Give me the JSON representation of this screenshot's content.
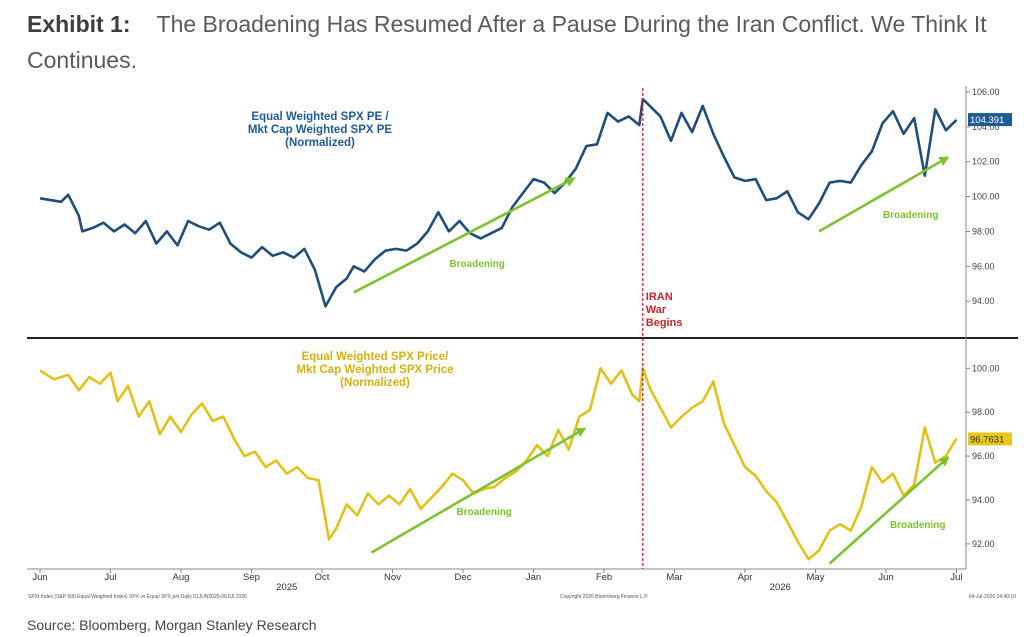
{
  "exhibit": {
    "label": "Exhibit 1:",
    "title": "The Broadening Has Resumed After a Pause During the Iran Conflict. We Think It Continues."
  },
  "source": "Source: Bloomberg, Morgan Stanley Research",
  "footnotes": {
    "left": "SPXI Index (S&P 500 Equal Weighted Index) SPX vs Equal SPX p/e Daily 01JUN2025-06JUL2026",
    "center": "Copyright 2026 Bloomberg Finance L.P.",
    "right": "04-Jul-2026 14:40:10"
  },
  "colors": {
    "pe_line": "#1f4e79",
    "price_line": "#e0c21a",
    "pe_label": "#1f5c96",
    "price_label": "#d4b20f",
    "arrow": "#7ec22f",
    "event_line": "#c0282d",
    "pe_badge": "#1f5c96",
    "price_badge": "#e8c81c",
    "divider": "#222222"
  },
  "event": {
    "label_lines": [
      "IRAN",
      "War",
      "Begins"
    ],
    "x": 8.55
  },
  "x_axis": {
    "months": [
      "Jun",
      "Jul",
      "Aug",
      "Sep",
      "Oct",
      "Nov",
      "Dec",
      "Jan",
      "Feb",
      "Mar",
      "Apr",
      "May",
      "Jun",
      "Jul"
    ],
    "years": [
      {
        "label": "2025",
        "x": 3.5
      },
      {
        "label": "2026",
        "x": 10.5
      }
    ]
  },
  "chart_data": [
    {
      "type": "line",
      "name": "pe_panel",
      "title_lines": [
        "Equal Weighted SPX PE /",
        "Mkt Cap Weighted SPX PE",
        "(Normalized)"
      ],
      "x_unit": "months since Jun 2025",
      "ylim": [
        92.0,
        106.0
      ],
      "yticks": [
        "106.00",
        "104.00",
        "102.00",
        "100.00",
        "98.00",
        "96.00",
        "94.00"
      ],
      "last_value_label": "104.391",
      "last_value": 104.39,
      "x": [
        0.0,
        0.3,
        0.4,
        0.55,
        0.6,
        0.75,
        0.9,
        1.05,
        1.2,
        1.35,
        1.5,
        1.65,
        1.8,
        1.95,
        2.1,
        2.25,
        2.4,
        2.55,
        2.7,
        2.85,
        3.0,
        3.15,
        3.3,
        3.45,
        3.6,
        3.75,
        3.9,
        4.05,
        4.2,
        4.35,
        4.45,
        4.6,
        4.75,
        4.9,
        5.05,
        5.2,
        5.35,
        5.5,
        5.65,
        5.8,
        5.95,
        6.1,
        6.25,
        6.4,
        6.55,
        6.7,
        6.85,
        7.0,
        7.15,
        7.3,
        7.45,
        7.6,
        7.75,
        7.9,
        8.05,
        8.2,
        8.35,
        8.5,
        8.55,
        8.65,
        8.8,
        8.95,
        9.1,
        9.25,
        9.4,
        9.55,
        9.7,
        9.85,
        10.0,
        10.15,
        10.3,
        10.45,
        10.6,
        10.75,
        10.9,
        11.05,
        11.2,
        11.35,
        11.5,
        11.65,
        11.8,
        11.95,
        12.1,
        12.25,
        12.4,
        12.55,
        12.7,
        12.85,
        13.0
      ],
      "values": [
        99.9,
        99.7,
        100.1,
        98.9,
        98.0,
        98.2,
        98.5,
        98.0,
        98.4,
        97.9,
        98.6,
        97.3,
        98.0,
        97.2,
        98.6,
        98.3,
        98.1,
        98.5,
        97.3,
        96.8,
        96.5,
        97.1,
        96.6,
        96.8,
        96.5,
        97.0,
        95.8,
        93.7,
        94.8,
        95.3,
        96.0,
        95.7,
        96.4,
        96.9,
        97.0,
        96.9,
        97.3,
        98.0,
        99.1,
        98.0,
        98.6,
        97.9,
        97.6,
        97.9,
        98.2,
        99.4,
        100.2,
        101.0,
        100.8,
        100.2,
        100.8,
        101.6,
        102.9,
        103.0,
        104.8,
        104.3,
        104.6,
        104.1,
        105.6,
        105.2,
        104.6,
        103.2,
        104.8,
        103.7,
        105.2,
        103.6,
        102.3,
        101.1,
        100.9,
        101.0,
        99.8,
        99.9,
        100.3,
        99.1,
        98.7,
        99.6,
        100.8,
        100.9,
        100.8,
        101.8,
        102.6,
        104.2,
        104.9,
        103.6,
        104.5,
        101.2,
        105.0,
        103.8,
        104.4
      ]
    },
    {
      "type": "line",
      "name": "price_panel",
      "title_lines": [
        "Equal Weighted SPX Price/",
        "Mkt Cap Weighted SPX Price",
        "(Normalized)"
      ],
      "x_unit": "months since Jun 2025",
      "ylim": [
        90.9,
        101.2
      ],
      "yticks": [
        "100.00",
        "98.00",
        "96.00",
        "94.00",
        "92.00"
      ],
      "last_value_label": "96.7631",
      "last_value": 96.76,
      "x": [
        0.0,
        0.2,
        0.4,
        0.55,
        0.7,
        0.85,
        1.0,
        1.1,
        1.25,
        1.4,
        1.55,
        1.7,
        1.85,
        2.0,
        2.15,
        2.3,
        2.45,
        2.6,
        2.75,
        2.9,
        3.05,
        3.2,
        3.35,
        3.5,
        3.65,
        3.8,
        3.95,
        4.1,
        4.2,
        4.35,
        4.5,
        4.65,
        4.8,
        4.95,
        5.1,
        5.25,
        5.4,
        5.55,
        5.7,
        5.85,
        6.0,
        6.15,
        6.3,
        6.45,
        6.6,
        6.75,
        6.9,
        7.05,
        7.2,
        7.35,
        7.5,
        7.65,
        7.8,
        7.95,
        8.1,
        8.25,
        8.4,
        8.5,
        8.55,
        8.65,
        8.8,
        8.95,
        9.1,
        9.25,
        9.4,
        9.55,
        9.7,
        9.85,
        10.0,
        10.15,
        10.3,
        10.45,
        10.6,
        10.75,
        10.9,
        11.05,
        11.2,
        11.35,
        11.5,
        11.65,
        11.8,
        11.95,
        12.1,
        12.25,
        12.4,
        12.55,
        12.7,
        12.85,
        13.0
      ],
      "values": [
        99.9,
        99.5,
        99.7,
        99.0,
        99.6,
        99.3,
        99.8,
        98.5,
        99.2,
        97.8,
        98.5,
        97.0,
        97.8,
        97.1,
        97.9,
        98.4,
        97.6,
        97.8,
        96.8,
        96.0,
        96.2,
        95.5,
        95.8,
        95.2,
        95.5,
        95.0,
        94.9,
        92.2,
        92.7,
        93.8,
        93.3,
        94.3,
        93.8,
        94.2,
        93.8,
        94.5,
        93.6,
        94.1,
        94.6,
        95.2,
        94.9,
        94.3,
        94.5,
        94.6,
        95.0,
        95.3,
        95.8,
        96.5,
        96.0,
        97.2,
        96.3,
        97.8,
        98.1,
        100.0,
        99.3,
        99.9,
        98.8,
        98.5,
        100.0,
        99.1,
        98.2,
        97.3,
        97.8,
        98.2,
        98.5,
        99.4,
        97.5,
        96.5,
        95.5,
        95.1,
        94.4,
        93.9,
        93.0,
        92.1,
        91.3,
        91.7,
        92.6,
        92.9,
        92.6,
        93.7,
        95.5,
        94.8,
        95.2,
        94.2,
        94.7,
        97.3,
        95.7,
        96.0,
        96.8
      ]
    }
  ],
  "annotations": {
    "broadening_label": "Broadening",
    "pe_arrows": [
      {
        "x1": 4.45,
        "y1": 94.5,
        "x2": 7.6,
        "y2": 101.1,
        "lx": 6.2,
        "ly": 96.2
      },
      {
        "x1": 11.05,
        "y1": 98.0,
        "x2": 12.9,
        "y2": 102.3,
        "lx": 12.35,
        "ly": 99.0
      }
    ],
    "price_arrows": [
      {
        "x1": 4.7,
        "y1": 91.6,
        "x2": 7.75,
        "y2": 97.3,
        "lx": 6.3,
        "ly": 93.5
      },
      {
        "x1": 11.2,
        "y1": 91.1,
        "x2": 12.9,
        "y2": 96.0,
        "lx": 12.45,
        "ly": 92.9
      }
    ]
  }
}
